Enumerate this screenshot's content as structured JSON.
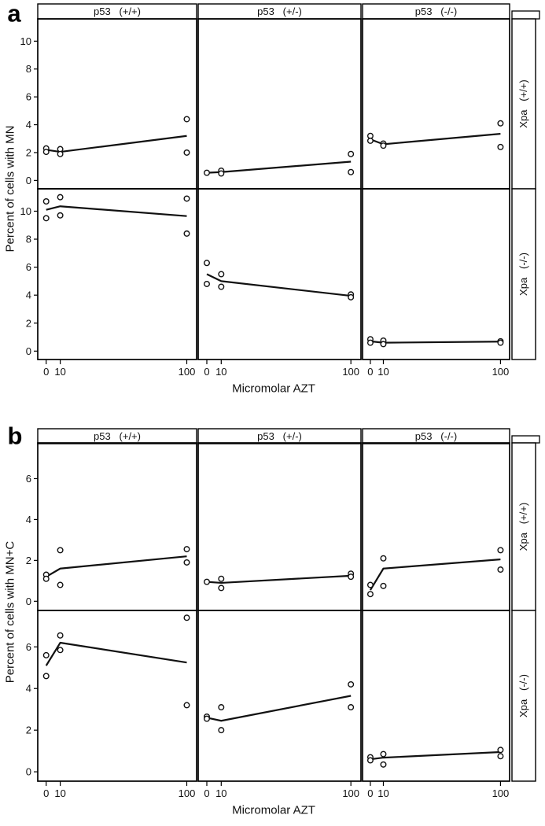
{
  "figures": [
    {
      "letter": "a"
    },
    {
      "letter": "b"
    }
  ],
  "chart_data": [
    {
      "type": "scatter",
      "figure": "a",
      "xlabel": "Micromolar AZT",
      "ylabel": "Percent of cells with MN",
      "x_ticks": [
        0,
        10,
        100
      ],
      "y_ticks": [
        0,
        2,
        4,
        6,
        8,
        10
      ],
      "xlim": [
        -6,
        107
      ],
      "ylim": [
        -0.6,
        11.6
      ],
      "grid": "off",
      "legend": "none",
      "marker": "open-circle",
      "line_color": "#111111",
      "col_facets": [
        {
          "factor": "p53",
          "level": "(+/+)"
        },
        {
          "factor": "p53",
          "level": "(+/-)"
        },
        {
          "factor": "p53",
          "level": "(-/-)"
        }
      ],
      "row_facets": [
        {
          "factor": "Xpa",
          "level": "(+/+)"
        },
        {
          "factor": "Xpa",
          "level": "(-/-)"
        }
      ],
      "panels": [
        {
          "row": 0,
          "col": 0,
          "row_label": "Xpa (+/+)",
          "col_label": "p53 (+/+)",
          "points": [
            [
              0,
              2.3
            ],
            [
              0,
              2.05
            ],
            [
              10,
              2.25
            ],
            [
              10,
              1.9
            ],
            [
              100,
              4.4
            ],
            [
              100,
              2.0
            ]
          ],
          "line": [
            [
              0,
              2.2
            ],
            [
              10,
              2.05
            ],
            [
              100,
              3.2
            ]
          ]
        },
        {
          "row": 0,
          "col": 1,
          "row_label": "Xpa (+/+)",
          "col_label": "p53 (+/-)",
          "points": [
            [
              0,
              0.55
            ],
            [
              10,
              0.7
            ],
            [
              10,
              0.5
            ],
            [
              100,
              1.9
            ],
            [
              100,
              0.6
            ]
          ],
          "line": [
            [
              0,
              0.55
            ],
            [
              10,
              0.6
            ],
            [
              100,
              1.35
            ]
          ]
        },
        {
          "row": 0,
          "col": 2,
          "row_label": "Xpa (+/+)",
          "col_label": "p53 (-/-)",
          "points": [
            [
              0,
              3.2
            ],
            [
              0,
              2.85
            ],
            [
              10,
              2.65
            ],
            [
              10,
              2.5
            ],
            [
              100,
              4.1
            ],
            [
              100,
              2.4
            ]
          ],
          "line": [
            [
              0,
              2.95
            ],
            [
              10,
              2.6
            ],
            [
              100,
              3.35
            ]
          ]
        },
        {
          "row": 1,
          "col": 0,
          "row_label": "Xpa (-/-)",
          "col_label": "p53 (+/+)",
          "points": [
            [
              0,
              10.7
            ],
            [
              0,
              9.5
            ],
            [
              10,
              11.0
            ],
            [
              10,
              9.7
            ],
            [
              100,
              10.9
            ],
            [
              100,
              8.4
            ]
          ],
          "line": [
            [
              0,
              10.1
            ],
            [
              10,
              10.35
            ],
            [
              100,
              9.65
            ]
          ]
        },
        {
          "row": 1,
          "col": 1,
          "row_label": "Xpa (-/-)",
          "col_label": "p53 (+/-)",
          "points": [
            [
              0,
              6.3
            ],
            [
              0,
              4.8
            ],
            [
              10,
              5.5
            ],
            [
              10,
              4.6
            ],
            [
              100,
              4.05
            ],
            [
              100,
              3.85
            ]
          ],
          "line": [
            [
              0,
              5.5
            ],
            [
              10,
              5.0
            ],
            [
              100,
              3.95
            ]
          ]
        },
        {
          "row": 1,
          "col": 2,
          "row_label": "Xpa (-/-)",
          "col_label": "p53 (-/-)",
          "points": [
            [
              0,
              0.85
            ],
            [
              0,
              0.6
            ],
            [
              10,
              0.75
            ],
            [
              10,
              0.5
            ],
            [
              100,
              0.7
            ],
            [
              100,
              0.6
            ]
          ],
          "line": [
            [
              0,
              0.7
            ],
            [
              10,
              0.6
            ],
            [
              100,
              0.68
            ]
          ]
        }
      ]
    },
    {
      "type": "scatter",
      "figure": "b",
      "xlabel": "Micromolar AZT",
      "ylabel": "Percent of cells with MN+C",
      "x_ticks": [
        0,
        10,
        100
      ],
      "y_ticks": [
        0,
        2,
        4,
        6
      ],
      "xlim": [
        -6,
        107
      ],
      "ylim": [
        -0.45,
        7.75
      ],
      "grid": "off",
      "legend": "none",
      "marker": "open-circle",
      "line_color": "#111111",
      "col_facets": [
        {
          "factor": "p53",
          "level": "(+/+)"
        },
        {
          "factor": "p53",
          "level": "(+/-)"
        },
        {
          "factor": "p53",
          "level": "(-/-)"
        }
      ],
      "row_facets": [
        {
          "factor": "Xpa",
          "level": "(+/+)"
        },
        {
          "factor": "Xpa",
          "level": "(-/-)"
        }
      ],
      "panels": [
        {
          "row": 0,
          "col": 0,
          "row_label": "Xpa (+/+)",
          "col_label": "p53 (+/+)",
          "points": [
            [
              0,
              1.3
            ],
            [
              0,
              1.1
            ],
            [
              10,
              2.5
            ],
            [
              10,
              0.8
            ],
            [
              100,
              2.55
            ],
            [
              100,
              1.9
            ]
          ],
          "line": [
            [
              0,
              1.2
            ],
            [
              10,
              1.6
            ],
            [
              100,
              2.2
            ]
          ]
        },
        {
          "row": 0,
          "col": 1,
          "row_label": "Xpa (+/+)",
          "col_label": "p53 (+/-)",
          "points": [
            [
              0,
              0.95
            ],
            [
              10,
              1.1
            ],
            [
              10,
              0.65
            ],
            [
              100,
              1.35
            ],
            [
              100,
              1.2
            ]
          ],
          "line": [
            [
              0,
              0.95
            ],
            [
              10,
              0.9
            ],
            [
              100,
              1.25
            ]
          ]
        },
        {
          "row": 0,
          "col": 2,
          "row_label": "Xpa (+/+)",
          "col_label": "p53 (-/-)",
          "points": [
            [
              0,
              0.8
            ],
            [
              0,
              0.35
            ],
            [
              10,
              2.1
            ],
            [
              10,
              0.75
            ],
            [
              100,
              2.5
            ],
            [
              100,
              1.55
            ]
          ],
          "line": [
            [
              0,
              0.55
            ],
            [
              10,
              1.6
            ],
            [
              100,
              2.05
            ]
          ]
        },
        {
          "row": 1,
          "col": 0,
          "row_label": "Xpa (-/-)",
          "col_label": "p53 (+/+)",
          "points": [
            [
              0,
              5.6
            ],
            [
              0,
              4.6
            ],
            [
              10,
              6.55
            ],
            [
              10,
              5.85
            ],
            [
              100,
              7.4
            ],
            [
              100,
              3.2
            ]
          ],
          "line": [
            [
              0,
              5.1
            ],
            [
              10,
              6.2
            ],
            [
              100,
              5.25
            ]
          ]
        },
        {
          "row": 1,
          "col": 1,
          "row_label": "Xpa (-/-)",
          "col_label": "p53 (+/-)",
          "points": [
            [
              0,
              2.65
            ],
            [
              0,
              2.55
            ],
            [
              10,
              3.1
            ],
            [
              10,
              2.0
            ],
            [
              100,
              4.2
            ],
            [
              100,
              3.1
            ]
          ],
          "line": [
            [
              0,
              2.6
            ],
            [
              10,
              2.45
            ],
            [
              100,
              3.65
            ]
          ]
        },
        {
          "row": 1,
          "col": 2,
          "row_label": "Xpa (-/-)",
          "col_label": "p53 (-/-)",
          "points": [
            [
              0,
              0.7
            ],
            [
              0,
              0.55
            ],
            [
              10,
              0.85
            ],
            [
              10,
              0.35
            ],
            [
              100,
              1.05
            ],
            [
              100,
              0.75
            ]
          ],
          "line": [
            [
              0,
              0.6
            ],
            [
              10,
              0.68
            ],
            [
              100,
              0.95
            ]
          ]
        }
      ]
    }
  ]
}
